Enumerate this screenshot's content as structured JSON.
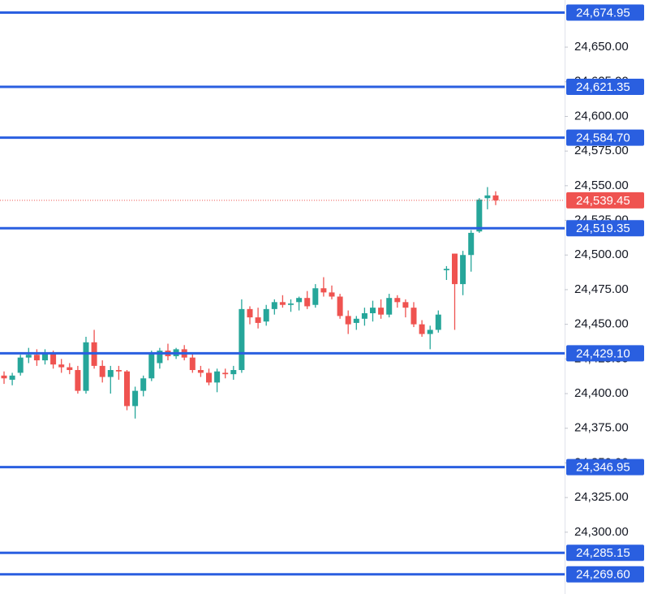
{
  "chart_data": {
    "type": "candlestick",
    "up_color": "#26a69a",
    "down_color": "#ef5350",
    "open": [
      24413,
      24410,
      24415,
      24426,
      24428,
      24424,
      24429,
      24421,
      24419,
      24417,
      24402,
      24437,
      24420,
      24412,
      24417,
      24416,
      24391,
      24402,
      24411,
      24422,
      24431,
      24427,
      24432,
      24426,
      24417,
      24415,
      24408,
      24415,
      24414,
      24417,
      24461,
      24455,
      24452,
      24461,
      24466,
      24464,
      24466,
      24469,
      24464,
      24476,
      24473,
      24470,
      24456,
      24451,
      24454,
      24458,
      24462,
      24457,
      24469,
      24466,
      24462,
      24450,
      24443,
      24446,
      24489,
      24501,
      24479,
      24500,
      24517,
      24541,
      24543
    ],
    "high": [
      24416,
      24415,
      24428,
      24433,
      24432,
      24432,
      24431,
      24425,
      24422,
      24420,
      24441,
      24446,
      24424,
      24420,
      24420,
      24417,
      24405,
      24413,
      24431,
      24433,
      24436,
      24433,
      24435,
      24429,
      24420,
      24418,
      24418,
      24418,
      24420,
      24468,
      24463,
      24462,
      24464,
      24468,
      24471,
      24468,
      24470,
      24474,
      24479,
      24484,
      24478,
      24472,
      24460,
      24456,
      24462,
      24467,
      24468,
      24472,
      24471,
      24468,
      24466,
      24453,
      24449,
      24460,
      24492,
      24501,
      24503,
      24518,
      24541,
      24549,
      24546
    ],
    "low": [
      24407,
      24406,
      24413,
      24422,
      24420,
      24421,
      24418,
      24415,
      24414,
      24400,
      24400,
      24418,
      24408,
      24400,
      24410,
      24388,
      24382,
      24398,
      24409,
      24418,
      24424,
      24425,
      24424,
      24415,
      24412,
      24406,
      24401,
      24411,
      24410,
      24415,
      24450,
      24447,
      24449,
      24457,
      24462,
      24459,
      24460,
      24461,
      24462,
      24470,
      24468,
      24454,
      24443,
      24446,
      24449,
      24452,
      24454,
      24455,
      24462,
      24455,
      24448,
      24441,
      24432,
      24444,
      24482,
      24446,
      24471,
      24488,
      24516,
      24533,
      24536
    ],
    "close": [
      24411,
      24413,
      24426,
      24428,
      24424,
      24429,
      24421,
      24419,
      24417,
      24402,
      24437,
      24420,
      24412,
      24417,
      24416,
      24391,
      24402,
      24411,
      24429,
      24431,
      24427,
      24432,
      24426,
      24417,
      24415,
      24408,
      24416,
      24414,
      24417,
      24461,
      24455,
      24451,
      24461,
      24466,
      24464,
      24465,
      24469,
      24463,
      24476,
      24473,
      24470,
      24456,
      24450,
      24454,
      24458,
      24462,
      24457,
      24469,
      24466,
      24462,
      24450,
      24443,
      24446,
      24457,
      24490,
      24479,
      24500,
      24516,
      24540,
      24543,
      24539.45
    ],
    "ylim": [
      24255.4,
      24684
    ],
    "yticks": [
      {
        "value": 24300,
        "label": "24,300.00"
      },
      {
        "value": 24325,
        "label": "24,325.00"
      },
      {
        "value": 24350,
        "label": "24,350.00"
      },
      {
        "value": 24375,
        "label": "24,375.00"
      },
      {
        "value": 24400,
        "label": "24,400.00"
      },
      {
        "value": 24425,
        "label": "24,425.00"
      },
      {
        "value": 24450,
        "label": "24,450.00"
      },
      {
        "value": 24475,
        "label": "24,475.00"
      },
      {
        "value": 24500,
        "label": "24,500.00"
      },
      {
        "value": 24525,
        "label": "24,525.00"
      },
      {
        "value": 24550,
        "label": "24,550.00"
      },
      {
        "value": 24575,
        "label": "24,575.00"
      },
      {
        "value": 24600,
        "label": "24,600.00"
      },
      {
        "value": 24625,
        "label": "24,625.00"
      },
      {
        "value": 24650,
        "label": "24,650.00"
      }
    ],
    "levels": [
      {
        "value": 24674.95,
        "label": "24,674.95"
      },
      {
        "value": 24621.35,
        "label": "24,621.35"
      },
      {
        "value": 24584.7,
        "label": "24,584.70"
      },
      {
        "value": 24519.35,
        "label": "24,519.35"
      },
      {
        "value": 24429.1,
        "label": "24,429.10"
      },
      {
        "value": 24346.95,
        "label": "24,346.95"
      },
      {
        "value": 24285.15,
        "label": "24,285.15"
      },
      {
        "value": 24269.6,
        "label": "24,269.60"
      }
    ],
    "level_color": "#2a5fe0",
    "last_price": {
      "value": 24539.45,
      "label": "24,539.45"
    },
    "last_price_color": "#ef5350"
  }
}
